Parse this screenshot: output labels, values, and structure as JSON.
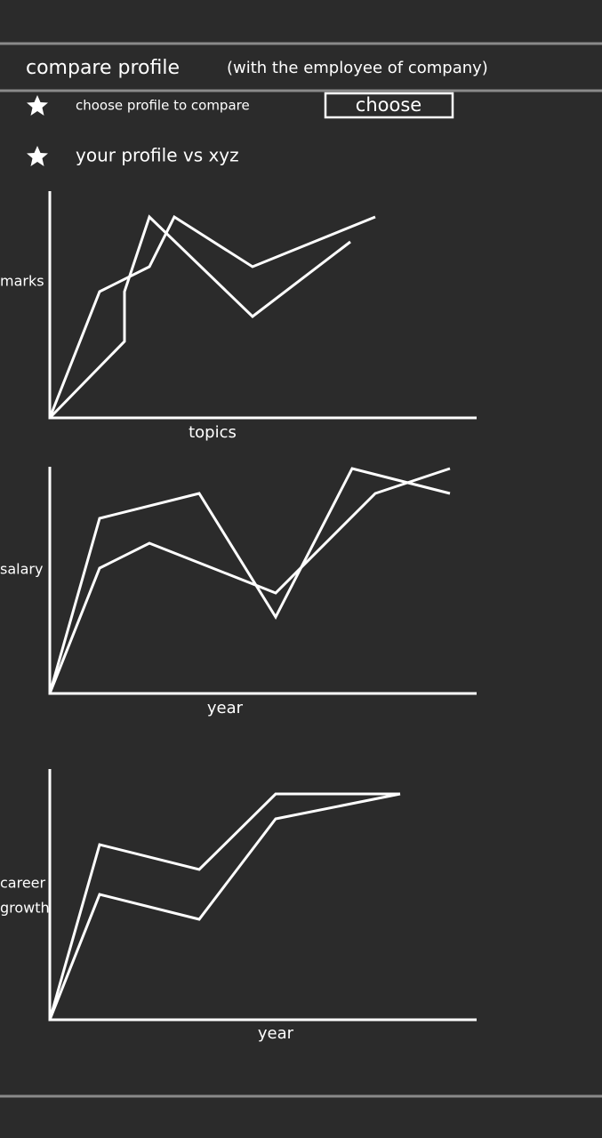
{
  "header": {
    "title": "compare profile",
    "subtitle": "(with the employee of company)"
  },
  "items": [
    {
      "label": "choose profile to compare",
      "button": "choose"
    },
    {
      "label": "your profile vs xyz"
    }
  ],
  "charts": [
    {
      "y_label": "marks",
      "x_label": "topics"
    },
    {
      "y_label": "salary",
      "x_label": "year"
    },
    {
      "y_label_lines": [
        "career",
        "growth"
      ],
      "x_label": "year"
    }
  ]
}
